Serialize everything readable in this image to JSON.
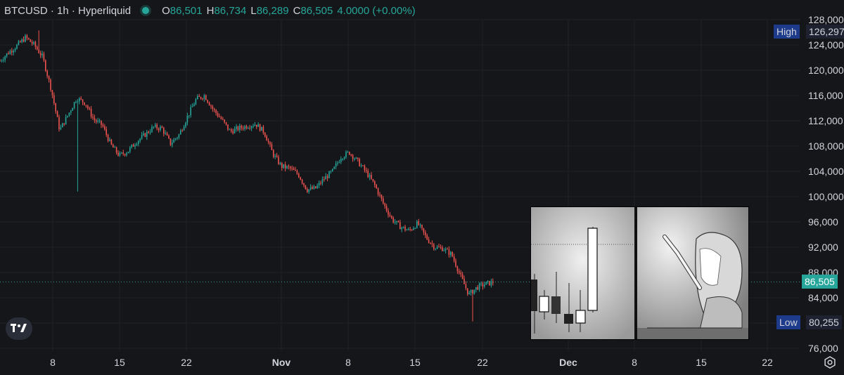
{
  "header": {
    "symbol": "BTCUSD · 1h · Hyperliquid",
    "open_label": "O",
    "open": "86,501",
    "high_label": "H",
    "high": "86,734",
    "low_label": "L",
    "low": "86,289",
    "close_label": "C",
    "close": "86,505",
    "change": "4.0000 (+0.00%)"
  },
  "price_tags": {
    "high_label": "High",
    "high_value": "126,297",
    "low_label": "Low",
    "low_value": "80,255",
    "last_value": "86,505"
  },
  "icons": {
    "logo": "tradingview-logo-icon",
    "settings": "gear-icon"
  },
  "colors": {
    "background": "#141619",
    "up": "#26a69a",
    "down": "#ef5350",
    "grid": "#1f2226",
    "text": "#d1d4dc"
  },
  "chart_data": {
    "type": "candlestick",
    "title": "",
    "xlabel": "",
    "ylabel": "",
    "ylim": [
      74000,
      129000
    ],
    "y_ticks": [
      "128,000",
      "124,000",
      "120,000",
      "116,000",
      "112,000",
      "108,000",
      "104,000",
      "100,000",
      "96,000",
      "92,000",
      "88,000",
      "84,000",
      "80,000",
      "76,000"
    ],
    "x_ticks": [
      "8",
      "15",
      "22",
      "Nov",
      "8",
      "15",
      "22",
      "Dec",
      "8",
      "15",
      "22"
    ],
    "grid": true,
    "last_price": 86505,
    "high_marker": 126297,
    "low_marker": 80255,
    "series": [
      {
        "values": [
          121500,
          122800,
          123900,
          125200,
          124000,
          122100,
          117000,
          110500,
          113000,
          115600,
          114800,
          112200,
          111300,
          108200,
          106500,
          107200,
          108700,
          109800,
          111000,
          110800,
          108400,
          109800,
          112700,
          115400,
          116000,
          113800,
          112200,
          110300,
          110800,
          111200,
          111500,
          110200,
          106800,
          104800,
          104500,
          103500,
          101100,
          101300,
          102800,
          104000,
          106300,
          107000,
          105500,
          103800,
          101700,
          98800,
          96400,
          95200,
          94600,
          95800,
          93500,
          92000,
          91800,
          90800,
          87500,
          84500,
          85700,
          86200,
          86505
        ]
      }
    ]
  },
  "inset": {
    "left_panel": "candlestick-sketch",
    "right_panel": "manga-girl-reaching"
  }
}
